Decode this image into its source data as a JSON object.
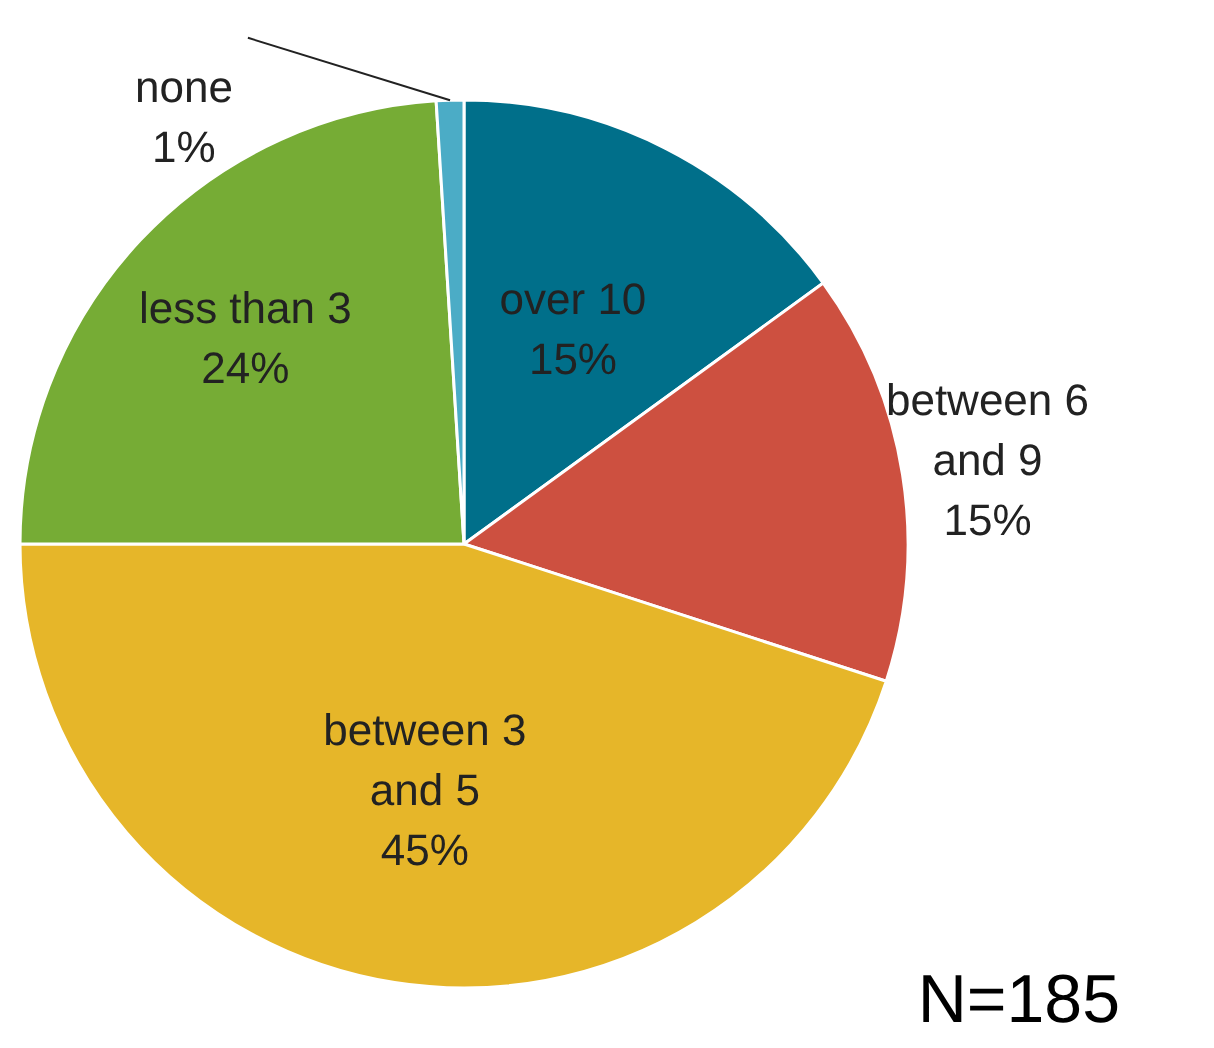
{
  "chart_data": {
    "type": "pie",
    "categories": [
      "over 10",
      "between 6 and 9",
      "between 3 and 5",
      "less than 3",
      "none"
    ],
    "values": [
      15,
      15,
      45,
      24,
      1
    ],
    "value_labels": [
      "15%",
      "15%",
      "45%",
      "24%",
      "1%"
    ],
    "colors": [
      "#006f8a",
      "#cd5040",
      "#e6b629",
      "#76ac35",
      "#4bacc6"
    ],
    "annotations": [
      "N=185"
    ]
  }
}
